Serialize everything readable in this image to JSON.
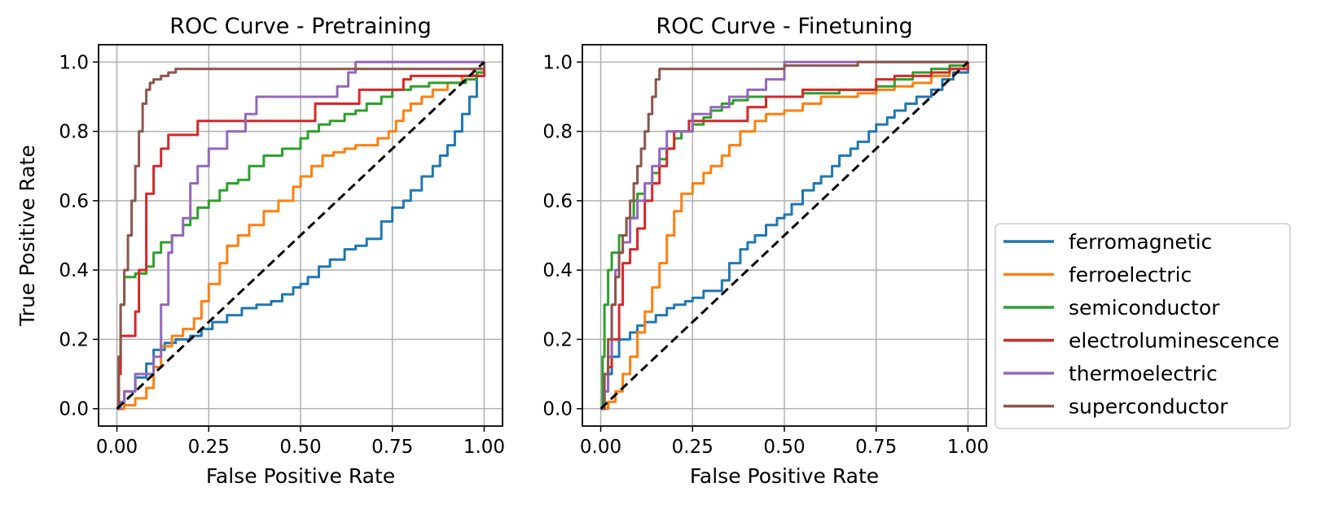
{
  "chart_data": [
    {
      "type": "line",
      "title": "ROC Curve - Pretraining",
      "xlabel": "False Positive Rate",
      "ylabel": "True Positive Rate",
      "xlim": [
        -0.05,
        1.05
      ],
      "ylim": [
        -0.05,
        1.05
      ],
      "xticks": [
        "0.00",
        "0.25",
        "0.50",
        "0.75",
        "1.00"
      ],
      "yticks": [
        "0.0",
        "0.2",
        "0.4",
        "0.6",
        "0.8",
        "1.0"
      ],
      "grid": true,
      "diagonal": {
        "x": [
          0,
          1
        ],
        "y": [
          0,
          1
        ],
        "style": "dashed",
        "color": "#000000"
      },
      "series": [
        {
          "name": "ferromagnetic",
          "color": "#1f77b4",
          "x": [
            0,
            0.02,
            0.05,
            0.08,
            0.1,
            0.13,
            0.16,
            0.2,
            0.23,
            0.26,
            0.3,
            0.34,
            0.38,
            0.42,
            0.45,
            0.48,
            0.5,
            0.52,
            0.55,
            0.58,
            0.62,
            0.65,
            0.68,
            0.72,
            0.75,
            0.78,
            0.8,
            0.83,
            0.86,
            0.88,
            0.9,
            0.92,
            0.94,
            0.96,
            0.98,
            1.0
          ],
          "y": [
            0,
            0.05,
            0.09,
            0.13,
            0.17,
            0.19,
            0.2,
            0.21,
            0.23,
            0.25,
            0.27,
            0.29,
            0.3,
            0.31,
            0.33,
            0.35,
            0.36,
            0.38,
            0.41,
            0.43,
            0.46,
            0.47,
            0.49,
            0.54,
            0.58,
            0.6,
            0.63,
            0.67,
            0.7,
            0.73,
            0.76,
            0.8,
            0.85,
            0.9,
            0.96,
            1.0
          ]
        },
        {
          "name": "ferroelectric",
          "color": "#ff7f0e",
          "x": [
            0,
            0.02,
            0.05,
            0.08,
            0.1,
            0.12,
            0.15,
            0.18,
            0.21,
            0.23,
            0.25,
            0.28,
            0.3,
            0.33,
            0.36,
            0.4,
            0.44,
            0.48,
            0.5,
            0.53,
            0.56,
            0.59,
            0.62,
            0.65,
            0.68,
            0.71,
            0.74,
            0.76,
            0.78,
            0.8,
            0.83,
            0.86,
            0.9,
            0.94,
            0.97,
            1.0
          ],
          "y": [
            0,
            0.01,
            0.03,
            0.06,
            0.12,
            0.18,
            0.21,
            0.23,
            0.26,
            0.31,
            0.36,
            0.42,
            0.47,
            0.5,
            0.53,
            0.57,
            0.6,
            0.64,
            0.67,
            0.7,
            0.73,
            0.74,
            0.75,
            0.76,
            0.76,
            0.78,
            0.8,
            0.83,
            0.86,
            0.88,
            0.9,
            0.92,
            0.94,
            0.96,
            0.98,
            1.0
          ]
        },
        {
          "name": "semiconductor",
          "color": "#2ca02c",
          "x": [
            0,
            0.005,
            0.01,
            0.02,
            0.05,
            0.08,
            0.1,
            0.12,
            0.15,
            0.18,
            0.2,
            0.22,
            0.25,
            0.28,
            0.3,
            0.33,
            0.36,
            0.4,
            0.45,
            0.5,
            0.52,
            0.55,
            0.58,
            0.62,
            0.65,
            0.68,
            0.72,
            0.75,
            0.8,
            0.85,
            0.9,
            0.95,
            0.98,
            1.0
          ],
          "y": [
            0,
            0.15,
            0.3,
            0.38,
            0.39,
            0.41,
            0.45,
            0.48,
            0.5,
            0.53,
            0.55,
            0.58,
            0.6,
            0.63,
            0.65,
            0.66,
            0.7,
            0.73,
            0.75,
            0.78,
            0.8,
            0.82,
            0.83,
            0.85,
            0.86,
            0.88,
            0.9,
            0.92,
            0.93,
            0.94,
            0.94,
            0.95,
            0.97,
            1.0
          ]
        },
        {
          "name": "electroluminescence",
          "color": "#d62728",
          "x": [
            0,
            0.005,
            0.01,
            0.05,
            0.06,
            0.08,
            0.09,
            0.1,
            0.12,
            0.14,
            0.16,
            0.22,
            0.25,
            0.41,
            0.54,
            0.6,
            0.66,
            0.72,
            0.78,
            0.8,
            0.85,
            0.9,
            0.95,
            0.98,
            1.0
          ],
          "y": [
            0,
            0.1,
            0.21,
            0.28,
            0.4,
            0.62,
            0.62,
            0.7,
            0.75,
            0.79,
            0.79,
            0.83,
            0.83,
            0.83,
            0.88,
            0.88,
            0.92,
            0.92,
            0.95,
            0.96,
            0.96,
            0.96,
            0.96,
            0.96,
            1.0
          ]
        },
        {
          "name": "thermoelectric",
          "color": "#9467bd",
          "x": [
            0,
            0.01,
            0.02,
            0.05,
            0.08,
            0.1,
            0.12,
            0.14,
            0.15,
            0.18,
            0.2,
            0.22,
            0.25,
            0.3,
            0.35,
            0.38,
            0.45,
            0.55,
            0.6,
            0.63,
            0.65,
            0.7,
            0.8,
            0.9,
            0.95,
            1.0
          ],
          "y": [
            0,
            0.02,
            0.05,
            0.1,
            0.1,
            0.15,
            0.3,
            0.45,
            0.5,
            0.55,
            0.65,
            0.7,
            0.75,
            0.8,
            0.85,
            0.9,
            0.9,
            0.9,
            0.93,
            0.97,
            1.0,
            1.0,
            1.0,
            1.0,
            1.0,
            1.0
          ]
        },
        {
          "name": "superconductor",
          "color": "#8c564b",
          "x": [
            0,
            0.005,
            0.01,
            0.02,
            0.03,
            0.04,
            0.05,
            0.06,
            0.07,
            0.08,
            0.09,
            0.1,
            0.12,
            0.14,
            0.16,
            0.3,
            0.5,
            0.7,
            0.9,
            1.0
          ],
          "y": [
            0,
            0.15,
            0.3,
            0.4,
            0.5,
            0.6,
            0.7,
            0.8,
            0.88,
            0.92,
            0.94,
            0.95,
            0.96,
            0.97,
            0.98,
            0.98,
            0.98,
            0.98,
            0.98,
            1.0
          ]
        }
      ]
    },
    {
      "type": "line",
      "title": "ROC Curve - Finetuning",
      "xlabel": "False Positive Rate",
      "ylabel": "",
      "xlim": [
        -0.05,
        1.05
      ],
      "ylim": [
        -0.05,
        1.05
      ],
      "xticks": [
        "0.00",
        "0.25",
        "0.50",
        "0.75",
        "1.00"
      ],
      "yticks": [
        "0.0",
        "0.2",
        "0.4",
        "0.6",
        "0.8",
        "1.0"
      ],
      "grid": true,
      "diagonal": {
        "x": [
          0,
          1
        ],
        "y": [
          0,
          1
        ],
        "style": "dashed",
        "color": "#000000"
      },
      "series": [
        {
          "name": "ferromagnetic",
          "color": "#1f77b4",
          "x": [
            0,
            0.01,
            0.03,
            0.05,
            0.08,
            0.1,
            0.12,
            0.15,
            0.18,
            0.2,
            0.23,
            0.25,
            0.28,
            0.3,
            0.33,
            0.35,
            0.38,
            0.4,
            0.42,
            0.45,
            0.48,
            0.5,
            0.52,
            0.55,
            0.58,
            0.6,
            0.63,
            0.65,
            0.68,
            0.7,
            0.73,
            0.75,
            0.78,
            0.8,
            0.83,
            0.86,
            0.9,
            0.93,
            0.96,
            1.0
          ],
          "y": [
            0,
            0.1,
            0.15,
            0.2,
            0.22,
            0.24,
            0.25,
            0.27,
            0.29,
            0.3,
            0.31,
            0.32,
            0.34,
            0.34,
            0.37,
            0.42,
            0.46,
            0.48,
            0.5,
            0.53,
            0.55,
            0.56,
            0.59,
            0.63,
            0.65,
            0.67,
            0.7,
            0.73,
            0.75,
            0.77,
            0.8,
            0.82,
            0.84,
            0.86,
            0.88,
            0.9,
            0.92,
            0.95,
            0.97,
            1.0
          ]
        },
        {
          "name": "ferroelectric",
          "color": "#ff7f0e",
          "x": [
            0,
            0.02,
            0.04,
            0.06,
            0.08,
            0.1,
            0.12,
            0.14,
            0.16,
            0.18,
            0.2,
            0.22,
            0.25,
            0.28,
            0.3,
            0.33,
            0.35,
            0.38,
            0.42,
            0.45,
            0.5,
            0.55,
            0.6,
            0.65,
            0.7,
            0.75,
            0.8,
            0.85,
            0.9,
            0.95,
            1.0
          ],
          "y": [
            0,
            0.02,
            0.05,
            0.1,
            0.15,
            0.22,
            0.28,
            0.35,
            0.42,
            0.5,
            0.57,
            0.62,
            0.65,
            0.68,
            0.7,
            0.73,
            0.76,
            0.8,
            0.83,
            0.85,
            0.86,
            0.88,
            0.9,
            0.9,
            0.91,
            0.92,
            0.93,
            0.94,
            0.96,
            0.98,
            1.0
          ]
        },
        {
          "name": "semiconductor",
          "color": "#2ca02c",
          "x": [
            0,
            0.005,
            0.01,
            0.02,
            0.03,
            0.05,
            0.07,
            0.09,
            0.1,
            0.12,
            0.14,
            0.16,
            0.18,
            0.2,
            0.22,
            0.25,
            0.28,
            0.3,
            0.33,
            0.36,
            0.4,
            0.45,
            0.5,
            0.55,
            0.6,
            0.65,
            0.7,
            0.75,
            0.8,
            0.85,
            0.9,
            0.95,
            1.0
          ],
          "y": [
            0,
            0.15,
            0.3,
            0.4,
            0.45,
            0.5,
            0.55,
            0.6,
            0.62,
            0.65,
            0.68,
            0.72,
            0.75,
            0.78,
            0.8,
            0.82,
            0.84,
            0.86,
            0.88,
            0.89,
            0.9,
            0.9,
            0.9,
            0.91,
            0.91,
            0.92,
            0.92,
            0.93,
            0.95,
            0.97,
            0.98,
            0.99,
            1.0
          ]
        },
        {
          "name": "electroluminescence",
          "color": "#d62728",
          "x": [
            0,
            0.01,
            0.02,
            0.03,
            0.05,
            0.06,
            0.08,
            0.1,
            0.12,
            0.14,
            0.16,
            0.18,
            0.2,
            0.24,
            0.3,
            0.4,
            0.45,
            0.55,
            0.65,
            0.7,
            0.75,
            0.8,
            0.9,
            0.95,
            1.0
          ],
          "y": [
            0,
            0.05,
            0.12,
            0.2,
            0.3,
            0.42,
            0.46,
            0.52,
            0.6,
            0.65,
            0.7,
            0.75,
            0.8,
            0.83,
            0.83,
            0.87,
            0.9,
            0.92,
            0.92,
            0.92,
            0.95,
            0.96,
            0.97,
            0.98,
            1.0
          ]
        },
        {
          "name": "thermoelectric",
          "color": "#9467bd",
          "x": [
            0,
            0.01,
            0.02,
            0.03,
            0.04,
            0.05,
            0.06,
            0.08,
            0.1,
            0.12,
            0.14,
            0.16,
            0.18,
            0.2,
            0.25,
            0.3,
            0.35,
            0.4,
            0.45,
            0.5,
            0.6,
            0.7,
            0.8,
            0.9,
            1.0
          ],
          "y": [
            0,
            0.05,
            0.15,
            0.3,
            0.4,
            0.45,
            0.48,
            0.55,
            0.6,
            0.65,
            0.7,
            0.75,
            0.8,
            0.8,
            0.85,
            0.87,
            0.9,
            0.92,
            0.95,
            1.0,
            1.0,
            1.0,
            1.0,
            1.0,
            1.0
          ]
        },
        {
          "name": "superconductor",
          "color": "#8c564b",
          "x": [
            0,
            0.01,
            0.02,
            0.03,
            0.04,
            0.05,
            0.06,
            0.07,
            0.08,
            0.09,
            0.1,
            0.11,
            0.12,
            0.13,
            0.14,
            0.15,
            0.16,
            0.3,
            0.5,
            0.7,
            0.9,
            1.0
          ],
          "y": [
            0,
            0.1,
            0.2,
            0.3,
            0.38,
            0.45,
            0.5,
            0.55,
            0.6,
            0.65,
            0.7,
            0.75,
            0.8,
            0.85,
            0.9,
            0.95,
            0.98,
            0.98,
            0.99,
            1.0,
            1.0,
            1.0
          ]
        }
      ]
    }
  ],
  "legend": {
    "placement": "right",
    "entries": [
      {
        "name": "ferromagnetic",
        "color": "#1f77b4"
      },
      {
        "name": "ferroelectric",
        "color": "#ff7f0e"
      },
      {
        "name": "semiconductor",
        "color": "#2ca02c"
      },
      {
        "name": "electroluminescence",
        "color": "#d62728"
      },
      {
        "name": "thermoelectric",
        "color": "#9467bd"
      },
      {
        "name": "superconductor",
        "color": "#8c564b"
      }
    ]
  }
}
